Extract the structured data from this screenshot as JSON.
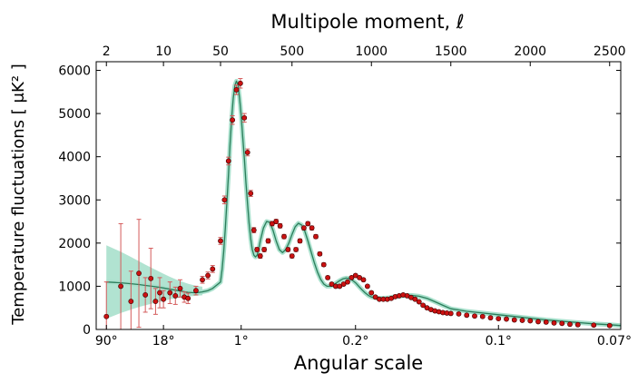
{
  "chart_data": {
    "type": "scatter",
    "title": "",
    "top_axis": {
      "label": "Multipole moment, ℓ",
      "ticks": [
        "2",
        "10",
        "50",
        "500",
        "1000",
        "1500",
        "2000",
        "2500"
      ],
      "tick_values": [
        2,
        10,
        50,
        500,
        1000,
        1500,
        2000,
        2500
      ]
    },
    "bottom_axis": {
      "label": "Angular scale",
      "ticks": [
        "90°",
        "18°",
        "1°",
        "0.2°",
        "0.1°",
        "0.07°"
      ],
      "tick_ell": [
        2,
        10,
        180,
        900,
        1800,
        2570
      ]
    },
    "y_axis": {
      "label": "Temperature fluctuations [ μK² ]",
      "ticks": [
        "0",
        "1000",
        "2000",
        "3000",
        "4000",
        "5000",
        "6000"
      ],
      "tick_values": [
        0,
        1000,
        2000,
        3000,
        4000,
        5000,
        6000
      ],
      "ylim": [
        0,
        6200
      ]
    },
    "xlim": [
      1.5,
      2570
    ],
    "x_scale": "log below ℓ=50, linear above ℓ=50",
    "colors": {
      "points": "#cc1111",
      "errorbars": "#d45a5a",
      "model_line": "#2a7d5a",
      "cosmic_variance_band": "#a8e0cc"
    },
    "series": [
      {
        "x": [
          2,
          3,
          4,
          5,
          6,
          7,
          8,
          9,
          10,
          12,
          14,
          16,
          18,
          20,
          25,
          30,
          35,
          40,
          50
        ],
        "y": [
          300,
          1000,
          650,
          1300,
          800,
          1180,
          650,
          850,
          700,
          850,
          780,
          950,
          750,
          720,
          900,
          1150,
          1250,
          1400,
          2050
        ],
        "err": [
          800,
          1450,
          700,
          1250,
          400,
          700,
          300,
          350,
          200,
          250,
          200,
          200,
          120,
          120,
          100,
          80,
          80,
          80,
          80
        ]
      },
      {
        "x": [
          75,
          100,
          125,
          150,
          175,
          200,
          220,
          240,
          260,
          280,
          300,
          325,
          350,
          375,
          400,
          425,
          450,
          475,
          500,
          525,
          550,
          575,
          600,
          625,
          650,
          675,
          700,
          725,
          750,
          775,
          800,
          825,
          850,
          875,
          900,
          925,
          950,
          975,
          1000,
          1025,
          1050,
          1075,
          1100,
          1125,
          1150,
          1175,
          1200,
          1225,
          1250,
          1275,
          1300,
          1325,
          1350,
          1375,
          1400,
          1425,
          1450,
          1475,
          1500,
          1550,
          1600,
          1650,
          1700,
          1750,
          1800,
          1850,
          1900,
          1950,
          2000,
          2050,
          2100,
          2150,
          2200,
          2250,
          2300,
          2400,
          2500
        ],
        "y": [
          3000,
          3900,
          4850,
          5550,
          5700,
          4900,
          4100,
          3150,
          2300,
          1850,
          1700,
          1850,
          2050,
          2450,
          2500,
          2400,
          2150,
          1850,
          1700,
          1850,
          2050,
          2350,
          2450,
          2350,
          2150,
          1750,
          1500,
          1200,
          1050,
          1000,
          1000,
          1050,
          1100,
          1200,
          1250,
          1200,
          1150,
          1000,
          850,
          750,
          700,
          700,
          700,
          720,
          760,
          780,
          800,
          780,
          740,
          700,
          640,
          560,
          500,
          460,
          430,
          410,
          390,
          380,
          370,
          360,
          330,
          310,
          300,
          270,
          250,
          240,
          220,
          210,
          200,
          180,
          170,
          150,
          140,
          120,
          110,
          100,
          90
        ],
        "err": [
          90,
          90,
          100,
          110,
          110,
          100,
          80,
          70,
          60,
          50,
          50,
          50,
          50,
          50,
          50,
          50,
          50,
          45,
          45,
          45,
          45,
          45,
          45,
          45,
          45,
          40,
          40,
          35,
          35,
          30,
          30,
          30,
          30,
          30,
          30,
          30,
          30,
          30,
          30,
          25,
          25,
          25,
          25,
          25,
          25,
          25,
          25,
          25,
          25,
          25,
          25,
          25,
          25,
          25,
          25,
          25,
          25,
          25,
          25,
          25,
          25,
          25,
          25,
          25,
          25,
          25,
          25,
          25,
          25,
          25,
          25,
          25,
          25,
          25,
          25,
          25,
          25
        ]
      }
    ],
    "model": {
      "x": [
        2,
        3,
        4,
        5,
        6,
        8,
        10,
        15,
        20,
        25,
        30,
        35,
        40,
        50,
        60,
        70,
        80,
        90,
        100,
        110,
        120,
        130,
        140,
        150,
        160,
        170,
        180,
        190,
        200,
        210,
        220,
        230,
        240,
        250,
        260,
        270,
        280,
        290,
        300,
        320,
        340,
        360,
        380,
        400,
        420,
        440,
        460,
        480,
        500,
        520,
        540,
        560,
        580,
        600,
        620,
        640,
        660,
        680,
        700,
        720,
        740,
        760,
        780,
        800,
        820,
        840,
        860,
        880,
        900,
        920,
        940,
        960,
        980,
        1000,
        1050,
        1100,
        1150,
        1200,
        1250,
        1300,
        1350,
        1400,
        1450,
        1500,
        1600,
        1700,
        1800,
        1900,
        2000,
        2100,
        2200,
        2300,
        2400,
        2500,
        2570
      ],
      "y": [
        1100,
        1080,
        1060,
        1040,
        1020,
        990,
        960,
        900,
        860,
        850,
        870,
        900,
        950,
        1100,
        1400,
        1800,
        2350,
        2950,
        3600,
        4300,
        4900,
        5350,
        5650,
        5750,
        5650,
        5350,
        4950,
        4450,
        3950,
        3400,
        2900,
        2450,
        2100,
        1850,
        1720,
        1680,
        1720,
        1850,
        2050,
        2350,
        2500,
        2480,
        2300,
        2050,
        1850,
        1780,
        1850,
        2000,
        2200,
        2380,
        2460,
        2420,
        2280,
        2050,
        1800,
        1550,
        1330,
        1160,
        1050,
        1000,
        1000,
        1030,
        1080,
        1130,
        1170,
        1190,
        1180,
        1140,
        1080,
        1000,
        920,
        850,
        790,
        750,
        720,
        730,
        760,
        780,
        790,
        770,
        720,
        640,
        560,
        480,
        420,
        380,
        340,
        300,
        260,
        220,
        190,
        160,
        130,
        110,
        90
      ]
    },
    "band": {
      "x": [
        2,
        3,
        4,
        5,
        6,
        8,
        10,
        12,
        15,
        20,
        25,
        30
      ],
      "upper": [
        1950,
        1800,
        1680,
        1580,
        1500,
        1380,
        1290,
        1220,
        1140,
        1060,
        1010,
        990
      ],
      "lower": [
        250,
        380,
        460,
        520,
        560,
        620,
        660,
        700,
        730,
        760,
        780,
        790
      ]
    }
  }
}
